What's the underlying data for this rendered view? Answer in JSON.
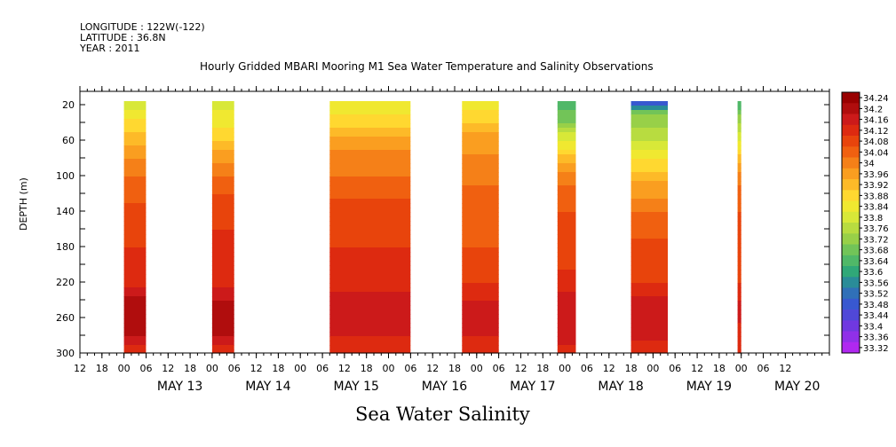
{
  "header": {
    "longitude": "LONGITUDE : 122W(-122)",
    "latitude": "LATITUDE : 36.8N",
    "year": "YEAR : 2011"
  },
  "chart_data": {
    "type": "heatmap",
    "title": "Hourly Gridded MBARI Mooring M1 Sea Water Temperature and Salinity Observations",
    "xlabel": "Sea Water Salinity",
    "ylabel": "DEPTH (m)",
    "x_axis": {
      "hour_ticks": [
        "12",
        "18",
        "00",
        "06",
        "12",
        "18",
        "00",
        "06",
        "12",
        "18",
        "00",
        "06",
        "12",
        "18",
        "00",
        "06",
        "12",
        "18",
        "00",
        "06",
        "12",
        "18",
        "00",
        "06",
        "12",
        "18",
        "00",
        "06",
        "12",
        "18",
        "00",
        "06",
        "12"
      ],
      "date_labels": [
        "MAY 13",
        "MAY 14",
        "MAY 15",
        "MAY 16",
        "MAY 17",
        "MAY 18",
        "MAY 19",
        "MAY 20"
      ],
      "range_hours": [
        -36,
        168
      ]
    },
    "y_axis": {
      "ticks": [
        20,
        60,
        100,
        140,
        180,
        220,
        260,
        300
      ],
      "range": [
        300,
        5
      ],
      "inverted": true
    },
    "colorbar": {
      "levels": [
        34.24,
        34.2,
        34.16,
        34.12,
        34.08,
        34.04,
        34,
        33.96,
        33.92,
        33.88,
        33.84,
        33.8,
        33.76,
        33.72,
        33.68,
        33.64,
        33.6,
        33.56,
        33.52,
        33.48,
        33.44,
        33.4,
        33.36,
        33.32
      ],
      "colors": [
        "#990000",
        "#b00d0d",
        "#cc1a1a",
        "#dd2a10",
        "#e8440c",
        "#f06010",
        "#f58018",
        "#fa9e20",
        "#fdba28",
        "#ffd830",
        "#f0e830",
        "#d8e838",
        "#b8dc40",
        "#98d048",
        "#72c458",
        "#50b868",
        "#30a878",
        "#2a8c98",
        "#3070b8",
        "#3858d0",
        "#5048d8",
        "#7038e0",
        "#9030e8",
        "#b028f0"
      ]
    },
    "segments": [
      {
        "start": "May 13 00",
        "end": "May 13 06",
        "top_depth": 20,
        "profile": [
          [
            20,
            33.82
          ],
          [
            60,
            33.95
          ],
          [
            100,
            34.04
          ],
          [
            140,
            34.09
          ],
          [
            180,
            34.12
          ],
          [
            220,
            34.14
          ],
          [
            240,
            34.22
          ],
          [
            280,
            34.2
          ],
          [
            300,
            34.14
          ]
        ]
      },
      {
        "start": "May 14 00",
        "end": "May 14 06",
        "top_depth": 20,
        "profile": [
          [
            20,
            33.82
          ],
          [
            60,
            33.92
          ],
          [
            100,
            34.04
          ],
          [
            140,
            34.11
          ],
          [
            180,
            34.13
          ],
          [
            220,
            34.14
          ],
          [
            250,
            34.22
          ],
          [
            280,
            34.2
          ],
          [
            300,
            34.14
          ]
        ]
      },
      {
        "start": "May 15 08",
        "end": "May 16 06",
        "top_depth": 20,
        "profile": [
          [
            20,
            33.84
          ],
          [
            40,
            33.9
          ],
          [
            60,
            33.98
          ],
          [
            100,
            34.04
          ],
          [
            140,
            34.1
          ],
          [
            180,
            34.12
          ],
          [
            220,
            34.14
          ],
          [
            250,
            34.19
          ],
          [
            280,
            34.16
          ],
          [
            300,
            34.12
          ]
        ]
      },
      {
        "start": "May 16 20",
        "end": "May 17 06",
        "top_depth": 20,
        "profile": [
          [
            20,
            33.86
          ],
          [
            60,
            33.98
          ],
          [
            100,
            34.03
          ],
          [
            140,
            34.06
          ],
          [
            180,
            34.08
          ],
          [
            220,
            34.12
          ],
          [
            250,
            34.18
          ],
          [
            280,
            34.16
          ],
          [
            300,
            34.12
          ]
        ]
      },
      {
        "start": "May 17 22",
        "end": "May 18 03",
        "top_depth": 20,
        "profile": [
          [
            20,
            33.66
          ],
          [
            40,
            33.72
          ],
          [
            60,
            33.84
          ],
          [
            100,
            34.02
          ],
          [
            140,
            34.08
          ],
          [
            180,
            34.1
          ],
          [
            220,
            34.13
          ],
          [
            250,
            34.2
          ],
          [
            280,
            34.18
          ],
          [
            300,
            34.14
          ]
        ]
      },
      {
        "start": "May 18 18",
        "end": "May 19 04",
        "top_depth": 20,
        "profile": [
          [
            20,
            33.5
          ],
          [
            30,
            33.72
          ],
          [
            60,
            33.8
          ],
          [
            100,
            33.94
          ],
          [
            140,
            34.04
          ],
          [
            180,
            34.09
          ],
          [
            220,
            34.12
          ],
          [
            250,
            34.2
          ],
          [
            280,
            34.17
          ],
          [
            300,
            34.14
          ]
        ]
      },
      {
        "start": "May 19 23",
        "end": "May 20 00",
        "top_depth": 20,
        "profile": [
          [
            20,
            33.66
          ],
          [
            60,
            33.84
          ],
          [
            100,
            34.02
          ],
          [
            140,
            34.08
          ],
          [
            180,
            34.1
          ],
          [
            220,
            34.12
          ],
          [
            250,
            34.18
          ],
          [
            300,
            34.12
          ]
        ]
      }
    ]
  }
}
